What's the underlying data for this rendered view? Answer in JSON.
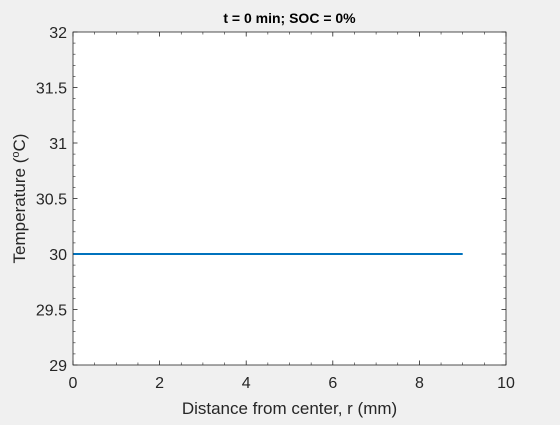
{
  "chart_data": {
    "type": "line",
    "title": "t = 0 min; SOC = 0%",
    "xlabel": "Distance from center, r (mm)",
    "ylabel_main": "Temperature (",
    "ylabel_sup": "o",
    "ylabel_end": "C)",
    "xlim": [
      0,
      10
    ],
    "ylim": [
      29,
      32
    ],
    "xticks": [
      0,
      2,
      4,
      6,
      8,
      10
    ],
    "xtick_labels": [
      "0",
      "2",
      "4",
      "6",
      "8",
      "10"
    ],
    "yticks": [
      29,
      29.5,
      30,
      30.5,
      31,
      31.5,
      32
    ],
    "ytick_labels": [
      "29",
      "29.5",
      "30",
      "30.5",
      "31",
      "31.5",
      "32"
    ],
    "grid": false,
    "series": [
      {
        "x": [
          0,
          9
        ],
        "y": [
          30,
          30
        ],
        "color": "#0072bd"
      }
    ]
  }
}
